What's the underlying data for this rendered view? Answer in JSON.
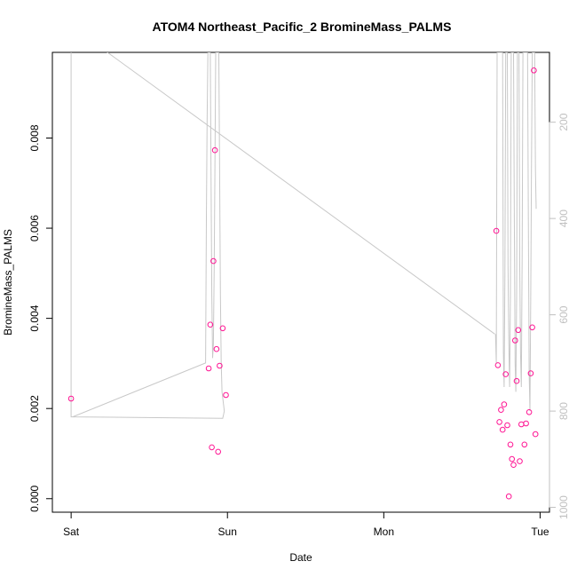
{
  "chart_data": {
    "type": "scatter",
    "title": "ATOM4 Northeast_Pacific_2 BromineMass_PALMS",
    "xlabel": "Date",
    "ylabel": "BromineMass_PALMS",
    "x_ticks": [
      "Sat",
      "Sun",
      "Mon",
      "Tue"
    ],
    "x_tick_days": [
      0,
      1,
      2,
      3
    ],
    "xlim_days": [
      -0.12,
      3.06
    ],
    "ylim": [
      -0.0003,
      0.0099
    ],
    "y_ticks": [
      0.0,
      0.002,
      0.004,
      0.006,
      0.008
    ],
    "y_tick_labels": [
      "0.000",
      "0.002",
      "0.004",
      "0.006",
      "0.008"
    ],
    "right_axis": {
      "label": "",
      "ticks": [
        200,
        400,
        600,
        800,
        1000
      ],
      "ylim_reversed": [
        1010,
        55
      ],
      "color": "#c0c0c0"
    },
    "grid": false,
    "point_color": "#ff1493",
    "line_color": "#c8c8c8",
    "series": [
      {
        "type": "points",
        "points": [
          [
            0.0,
            0.00222
          ],
          [
            0.88,
            0.00289
          ],
          [
            0.89,
            0.00386
          ],
          [
            0.9,
            0.00114
          ],
          [
            0.91,
            0.00527
          ],
          [
            0.92,
            0.00773
          ],
          [
            0.93,
            0.00332
          ],
          [
            0.94,
            0.00104
          ],
          [
            0.95,
            0.00295
          ],
          [
            0.97,
            0.00378
          ],
          [
            0.99,
            0.0023
          ],
          [
            2.72,
            0.00594
          ],
          [
            2.73,
            0.00296
          ],
          [
            2.74,
            0.0017
          ],
          [
            2.75,
            0.00197
          ],
          [
            2.76,
            0.00153
          ],
          [
            2.77,
            0.00209
          ],
          [
            2.78,
            0.00276
          ],
          [
            2.79,
            0.00163
          ],
          [
            2.8,
            5e-05
          ],
          [
            2.81,
            0.0012
          ],
          [
            2.82,
            0.00088
          ],
          [
            2.83,
            0.00075
          ],
          [
            2.84,
            0.00351
          ],
          [
            2.85,
            0.00261
          ],
          [
            2.86,
            0.00374
          ],
          [
            2.87,
            0.00083
          ],
          [
            2.88,
            0.00165
          ],
          [
            2.9,
            0.0012
          ],
          [
            2.91,
            0.00167
          ],
          [
            2.93,
            0.00192
          ],
          [
            2.94,
            0.00278
          ],
          [
            2.95,
            0.0038
          ],
          [
            2.96,
            0.0095
          ],
          [
            2.97,
            0.00143
          ]
        ]
      },
      {
        "type": "line",
        "axis": "right",
        "points": [
          [
            0.0,
            812
          ],
          [
            0.97,
            815
          ],
          [
            0.98,
            800
          ],
          [
            0.965,
            760
          ],
          [
            0.96,
            700
          ],
          [
            0.955,
            560
          ],
          [
            0.95,
            300
          ],
          [
            0.945,
            55
          ],
          [
            0.925,
            55
          ],
          [
            0.92,
            300
          ],
          [
            0.915,
            500
          ],
          [
            0.91,
            660
          ],
          [
            0.905,
            690
          ],
          [
            0.9,
            560
          ],
          [
            0.895,
            300
          ],
          [
            0.89,
            55
          ],
          [
            0.875,
            55
          ],
          [
            0.87,
            200
          ],
          [
            0.865,
            400
          ],
          [
            0.862,
            600
          ],
          [
            0.86,
            700
          ],
          [
            0.01,
            812
          ],
          [
            0.0,
            812
          ],
          [
            0.0,
            0
          ],
          [
            2.71,
            640
          ]
        ]
      }
    ]
  }
}
